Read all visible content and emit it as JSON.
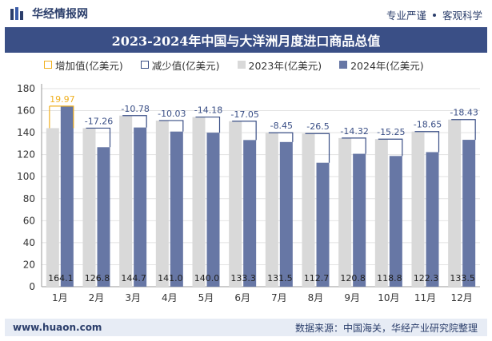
{
  "header": {
    "brand": "华经情报网",
    "tagline_left": "专业严谨",
    "tagline_right": "客观科学"
  },
  "footer": {
    "website": "www.huaon.com",
    "source": "数据来源：中国海关，华经产业研究院整理"
  },
  "colors": {
    "bar2023": "#d9d9d9",
    "bar2024": "#6777a5",
    "increase": "#f0b020",
    "decrease": "#3a4f86",
    "title_bg": "#3a4f86"
  },
  "chart_data": {
    "type": "bar",
    "title": "2023-2024年中国与大洋洲月度进口商品总值",
    "categories": [
      "1月",
      "2月",
      "3月",
      "4月",
      "5月",
      "6月",
      "7月",
      "8月",
      "9月",
      "10月",
      "11月",
      "12月"
    ],
    "series": [
      {
        "name": "2023年(亿美元)",
        "values": [
          144.1,
          144.1,
          155.5,
          151.0,
          154.2,
          150.4,
          139.9,
          139.2,
          135.1,
          134.1,
          141.0,
          151.9
        ]
      },
      {
        "name": "2024年(亿美元)",
        "values": [
          164.1,
          126.8,
          144.7,
          141.0,
          140.0,
          133.3,
          131.5,
          112.7,
          120.8,
          118.8,
          122.3,
          133.5
        ]
      }
    ],
    "changes": [
      19.97,
      -17.26,
      -10.78,
      -10.03,
      -14.18,
      -17.05,
      -8.45,
      -26.5,
      -14.32,
      -15.25,
      -18.65,
      -18.43
    ],
    "change_labels": [
      "19.97",
      "-17.26",
      "-10.78",
      "-10.03",
      "-14.18",
      "-17.05",
      "-8.45",
      "-26.5",
      "-14.32",
      "-15.25",
      "-18.65",
      "-18.43"
    ],
    "value_labels": [
      "164.1",
      "126.8",
      "144.7",
      "141.0",
      "140.0",
      "133.3",
      "131.5",
      "112.7",
      "120.8",
      "118.8",
      "122.3",
      "133.5"
    ],
    "legend": [
      {
        "label": "增加值(亿美元)",
        "kind": "increase"
      },
      {
        "label": "减少值(亿美元)",
        "kind": "decrease"
      },
      {
        "label": "2023年(亿美元)",
        "kind": "bar2023"
      },
      {
        "label": "2024年(亿美元)",
        "kind": "bar2024"
      }
    ],
    "ylim": [
      0,
      180
    ],
    "yticks": [
      "0",
      "20",
      "40",
      "60",
      "80",
      "100",
      "120",
      "140",
      "160",
      "180"
    ],
    "grid": true,
    "legend_position": "top"
  }
}
